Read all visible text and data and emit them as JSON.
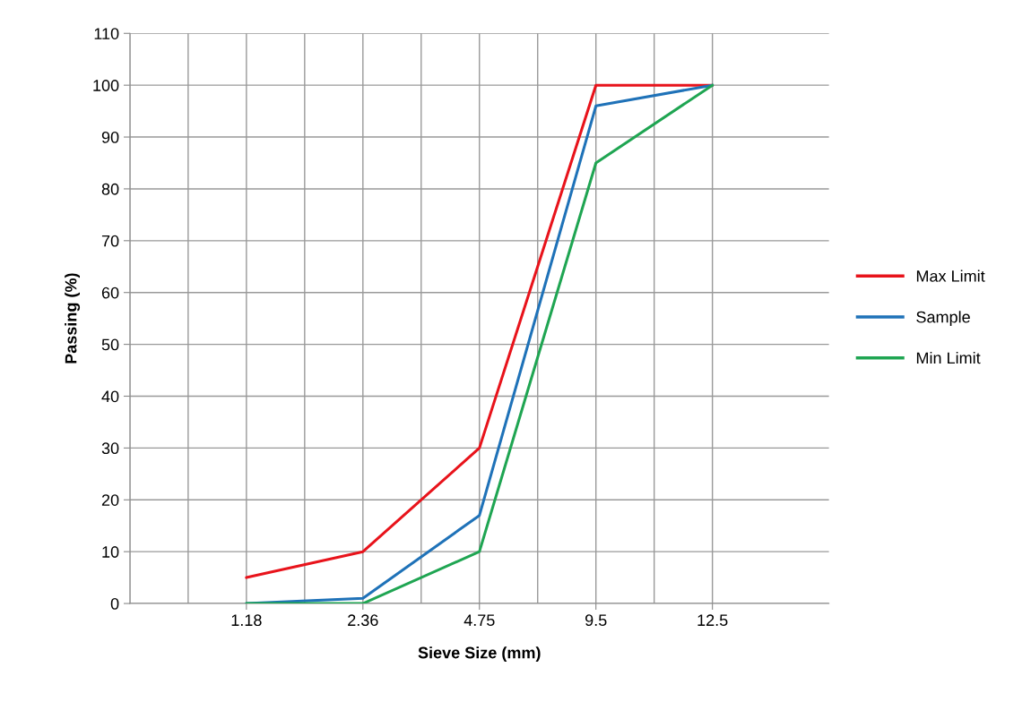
{
  "chart_data": {
    "type": "line",
    "xlabel": "Sieve Size (mm)",
    "ylabel": "Passing (%)",
    "categories": [
      "1.18",
      "2.36",
      "4.75",
      "9.5",
      "12.5"
    ],
    "series": [
      {
        "name": "Max Limit",
        "color": "#e8131b",
        "values": [
          5,
          10,
          30,
          100,
          100
        ]
      },
      {
        "name": "Sample",
        "color": "#1f72b8",
        "values": [
          0,
          1,
          17,
          96,
          100
        ]
      },
      {
        "name": "Min Limit",
        "color": "#1fa552",
        "values": [
          0,
          0,
          10,
          85,
          100
        ]
      }
    ],
    "ylim": [
      0,
      110
    ],
    "yticks": [
      0,
      10,
      20,
      30,
      40,
      50,
      60,
      70,
      80,
      90,
      100,
      110
    ],
    "grid": true,
    "legend": "right",
    "marker": "none",
    "line_style": "solid"
  }
}
